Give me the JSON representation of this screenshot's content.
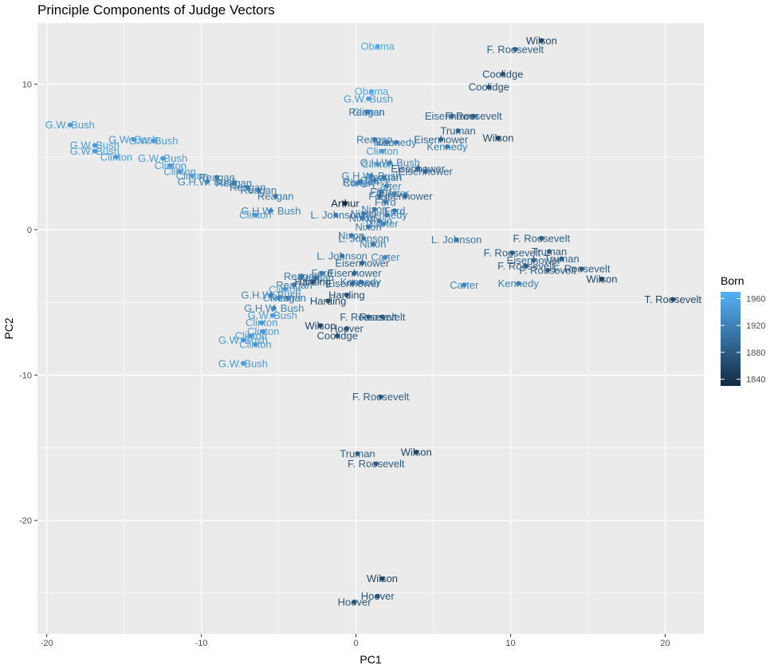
{
  "chart_data": {
    "type": "scatter",
    "title": "Principle Components of Judge Vectors",
    "xlabel": "PC1",
    "ylabel": "PC2",
    "xlim": [
      -20.6,
      22.5
    ],
    "ylim": [
      -27.8,
      14.2
    ],
    "x_ticks": [
      -20,
      -10,
      0,
      10,
      20
    ],
    "y_ticks": [
      10,
      0,
      -10,
      -20
    ],
    "grid": true,
    "background": "#ebebeb",
    "grid_color": "#ffffff",
    "legend": {
      "title": "Born",
      "placement": "right",
      "type": "colorbar",
      "range": [
        1830,
        1970
      ],
      "ticks": [
        1960,
        1920,
        1880,
        1840
      ],
      "color_low": "#132b43",
      "color_high": "#56b1f7"
    },
    "points": [
      {
        "x": 1.4,
        "y": 12.6,
        "label": "Obama",
        "born": 1961
      },
      {
        "x": 1.0,
        "y": 9.5,
        "label": "Obama",
        "born": 1961
      },
      {
        "x": 0.8,
        "y": 9.0,
        "label": "G.W. Bush",
        "born": 1946
      },
      {
        "x": 0.8,
        "y": 8.1,
        "label": "Clinton",
        "born": 1946
      },
      {
        "x": 0.7,
        "y": 8.1,
        "label": "Reagan",
        "born": 1911
      },
      {
        "x": 1.2,
        "y": 6.2,
        "label": "Reagan",
        "born": 1911
      },
      {
        "x": 2.0,
        "y": 6.0,
        "label": "Nixon",
        "born": 1913
      },
      {
        "x": 2.6,
        "y": 6.0,
        "label": "Kennedy",
        "born": 1917
      },
      {
        "x": 1.7,
        "y": 5.4,
        "label": "Clinton",
        "born": 1946
      },
      {
        "x": 1.4,
        "y": 4.5,
        "label": "Clinton",
        "born": 1946
      },
      {
        "x": 2.2,
        "y": 4.6,
        "label": "G.H.W. Bush",
        "born": 1924
      },
      {
        "x": 1.0,
        "y": 3.7,
        "label": "G.H.W. Bush",
        "born": 1924
      },
      {
        "x": 1.8,
        "y": 3.6,
        "label": "Reagan",
        "born": 1911
      },
      {
        "x": 1.2,
        "y": 3.4,
        "label": "Carter",
        "born": 1924
      },
      {
        "x": 0.3,
        "y": 3.3,
        "label": "Reagan",
        "born": 1911
      },
      {
        "x": 0.1,
        "y": 3.2,
        "label": "Carter",
        "born": 1924
      },
      {
        "x": 2.0,
        "y": 3.0,
        "label": "Carter",
        "born": 1924
      },
      {
        "x": 1.6,
        "y": 2.6,
        "label": "Ford",
        "born": 1913
      },
      {
        "x": 2.5,
        "y": 2.5,
        "label": "Carter",
        "born": 1924
      },
      {
        "x": 1.5,
        "y": 2.3,
        "label": "Ford",
        "born": 1913
      },
      {
        "x": 1.9,
        "y": 1.9,
        "label": "Ford",
        "born": 1913
      },
      {
        "x": 3.2,
        "y": 2.3,
        "label": "Eisenhower",
        "born": 1890
      },
      {
        "x": 4.0,
        "y": 4.2,
        "label": "Eisenhower",
        "born": 1890
      },
      {
        "x": 4.5,
        "y": 4.0,
        "label": "Eisenhower",
        "born": 1890
      },
      {
        "x": -0.7,
        "y": 1.8,
        "label": "Arthur",
        "born": 1829
      },
      {
        "x": 1.2,
        "y": 1.4,
        "label": "Nixon",
        "born": 1913
      },
      {
        "x": 2.5,
        "y": 1.3,
        "label": "Ford",
        "born": 1913
      },
      {
        "x": 0.5,
        "y": 1.1,
        "label": "Nixon",
        "born": 1913
      },
      {
        "x": 2.0,
        "y": 1.0,
        "label": "Kennedy",
        "born": 1917
      },
      {
        "x": -1.3,
        "y": 1.0,
        "label": "L. Johnson",
        "born": 1908
      },
      {
        "x": 0.4,
        "y": 0.8,
        "label": "Nixon",
        "born": 1913
      },
      {
        "x": 1.5,
        "y": 0.6,
        "label": "Nixon",
        "born": 1913
      },
      {
        "x": 1.8,
        "y": 0.4,
        "label": "Carter",
        "born": 1924
      },
      {
        "x": 0.8,
        "y": 0.2,
        "label": "Nixon",
        "born": 1913
      },
      {
        "x": -0.3,
        "y": -0.4,
        "label": "Nixon",
        "born": 1913
      },
      {
        "x": 0.5,
        "y": -0.6,
        "label": "L. Johnson",
        "born": 1908
      },
      {
        "x": 1.1,
        "y": -1.0,
        "label": "Nixon",
        "born": 1913
      },
      {
        "x": 6.5,
        "y": -0.7,
        "label": "L. Johnson",
        "born": 1908
      },
      {
        "x": 12.0,
        "y": -0.6,
        "label": "F. Roosevelt",
        "born": 1882
      },
      {
        "x": 10.1,
        "y": -1.6,
        "label": "F. Roosevelt",
        "born": 1882
      },
      {
        "x": 12.5,
        "y": -1.5,
        "label": "Truman",
        "born": 1884
      },
      {
        "x": 11.5,
        "y": -2.1,
        "label": "Eisenhower",
        "born": 1890
      },
      {
        "x": 13.3,
        "y": -2.0,
        "label": "Truman",
        "born": 1884
      },
      {
        "x": 11.0,
        "y": -2.5,
        "label": "F. Roosevelt",
        "born": 1882
      },
      {
        "x": 14.6,
        "y": -2.7,
        "label": "F. Roosevelt",
        "born": 1882
      },
      {
        "x": 12.4,
        "y": -2.8,
        "label": "F. Roosevelt",
        "born": 1882
      },
      {
        "x": 15.9,
        "y": -3.4,
        "label": "Wilson",
        "born": 1856
      },
      {
        "x": 10.5,
        "y": -3.7,
        "label": "Kennedy",
        "born": 1917
      },
      {
        "x": 7.0,
        "y": -3.8,
        "label": "Carter",
        "born": 1924
      },
      {
        "x": 20.5,
        "y": -4.8,
        "label": "T. Roosevelt",
        "born": 1858
      },
      {
        "x": -0.9,
        "y": -1.8,
        "label": "L. Johnson",
        "born": 1908
      },
      {
        "x": 1.9,
        "y": -1.9,
        "label": "Carter",
        "born": 1924
      },
      {
        "x": 0.4,
        "y": -2.3,
        "label": "Eisenhower",
        "born": 1890
      },
      {
        "x": -2.2,
        "y": -3.0,
        "label": "Ford",
        "born": 1913
      },
      {
        "x": -0.1,
        "y": -3.0,
        "label": "Eisenhower",
        "born": 1890
      },
      {
        "x": -3.5,
        "y": -3.2,
        "label": "Reagan",
        "born": 1911
      },
      {
        "x": -2.6,
        "y": -3.3,
        "label": "Reagan",
        "born": 1911
      },
      {
        "x": 0.3,
        "y": -3.6,
        "label": "Kennedy",
        "born": 1917
      },
      {
        "x": -2.8,
        "y": -3.6,
        "label": "Harding",
        "born": 1865
      },
      {
        "x": -0.2,
        "y": -3.7,
        "label": "Eisenhower",
        "born": 1890
      },
      {
        "x": -4.0,
        "y": -3.8,
        "label": "Reagan",
        "born": 1911
      },
      {
        "x": -4.6,
        "y": -4.1,
        "label": "Clinton",
        "born": 1946
      },
      {
        "x": -0.6,
        "y": -4.5,
        "label": "Harding",
        "born": 1865
      },
      {
        "x": -5.5,
        "y": -4.5,
        "label": "G.H.W. Bush",
        "born": 1924
      },
      {
        "x": -5.0,
        "y": -4.7,
        "label": "Clinton",
        "born": 1946
      },
      {
        "x": -1.8,
        "y": -4.9,
        "label": "Harding",
        "born": 1865
      },
      {
        "x": -4.4,
        "y": -4.7,
        "label": "Reagan",
        "born": 1911
      },
      {
        "x": -5.3,
        "y": -5.4,
        "label": "G.H.W. Bush",
        "born": 1924
      },
      {
        "x": -5.4,
        "y": -5.9,
        "label": "G.W. Bush",
        "born": 1946
      },
      {
        "x": 0.8,
        "y": -6.0,
        "label": "F. Roosevelt",
        "born": 1882
      },
      {
        "x": 1.7,
        "y": -6.0,
        "label": "Roosevelt",
        "born": 1882
      },
      {
        "x": -6.1,
        "y": -6.4,
        "label": "Clinton",
        "born": 1946
      },
      {
        "x": -2.3,
        "y": -6.6,
        "label": "Wilson",
        "born": 1856
      },
      {
        "x": -6.0,
        "y": -7.0,
        "label": "Clinton",
        "born": 1946
      },
      {
        "x": -0.6,
        "y": -6.8,
        "label": "Hoover",
        "born": 1874
      },
      {
        "x": -6.8,
        "y": -7.3,
        "label": "Clinton",
        "born": 1946
      },
      {
        "x": -1.2,
        "y": -7.3,
        "label": "Coolidge",
        "born": 1872
      },
      {
        "x": -7.3,
        "y": -7.6,
        "label": "G.W. Bush",
        "born": 1946
      },
      {
        "x": -6.5,
        "y": -7.9,
        "label": "Clinton",
        "born": 1946
      },
      {
        "x": -7.3,
        "y": -9.2,
        "label": "G.W. Bush",
        "born": 1946
      },
      {
        "x": 1.6,
        "y": -11.5,
        "label": "F. Roosevelt",
        "born": 1882
      },
      {
        "x": 0.1,
        "y": -15.4,
        "label": "Truman",
        "born": 1884
      },
      {
        "x": 3.9,
        "y": -15.3,
        "label": "Wilson",
        "born": 1856
      },
      {
        "x": 1.3,
        "y": -16.1,
        "label": "F. Roosevelt",
        "born": 1882
      },
      {
        "x": 1.7,
        "y": -24.0,
        "label": "Wilson",
        "born": 1856
      },
      {
        "x": 1.4,
        "y": -25.2,
        "label": "Hoover",
        "born": 1874
      },
      {
        "x": -0.1,
        "y": -25.6,
        "label": "Hoover",
        "born": 1874
      },
      {
        "x": -18.5,
        "y": 7.2,
        "label": "G.W. Bush",
        "born": 1946
      },
      {
        "x": -14.4,
        "y": 6.2,
        "label": "G.W. Bush",
        "born": 1946
      },
      {
        "x": -13.1,
        "y": 6.1,
        "label": "G.W. Bush",
        "born": 1946
      },
      {
        "x": -16.9,
        "y": 5.8,
        "label": "G.W. Bush",
        "born": 1946
      },
      {
        "x": -16.9,
        "y": 5.4,
        "label": "G.W. Bush",
        "born": 1946
      },
      {
        "x": -15.5,
        "y": 5.0,
        "label": "Clinton",
        "born": 1946
      },
      {
        "x": -12.5,
        "y": 4.9,
        "label": "G.W. Bush",
        "born": 1946
      },
      {
        "x": -12.0,
        "y": 4.4,
        "label": "Clinton",
        "born": 1946
      },
      {
        "x": -11.4,
        "y": 4.0,
        "label": "Clinton",
        "born": 1946
      },
      {
        "x": -10.6,
        "y": 3.7,
        "label": "Clinton",
        "born": 1946
      },
      {
        "x": -9.0,
        "y": 3.6,
        "label": "Reagan",
        "born": 1911
      },
      {
        "x": -9.6,
        "y": 3.3,
        "label": "G.H.W. Bush",
        "born": 1924
      },
      {
        "x": -7.9,
        "y": 3.2,
        "label": "Reagan",
        "born": 1911
      },
      {
        "x": -7.0,
        "y": 2.9,
        "label": "Reagan",
        "born": 1911
      },
      {
        "x": -6.3,
        "y": 2.7,
        "label": "Reagan",
        "born": 1911
      },
      {
        "x": -5.2,
        "y": 2.3,
        "label": "Reagan",
        "born": 1911
      },
      {
        "x": -5.5,
        "y": 1.3,
        "label": "G.H.W. Bush",
        "born": 1924
      },
      {
        "x": -6.5,
        "y": 1.0,
        "label": "Clinton",
        "born": 1946
      },
      {
        "x": 12.0,
        "y": 13.0,
        "label": "Wilson",
        "born": 1856
      },
      {
        "x": 10.3,
        "y": 12.4,
        "label": "F. Roosevelt",
        "born": 1882
      },
      {
        "x": 9.5,
        "y": 10.7,
        "label": "Coolidge",
        "born": 1872
      },
      {
        "x": 8.6,
        "y": 9.8,
        "label": "Coolidge",
        "born": 1872
      },
      {
        "x": 6.2,
        "y": 7.8,
        "label": "Eisenhower",
        "born": 1890
      },
      {
        "x": 7.6,
        "y": 7.8,
        "label": "F. Roosevelt",
        "born": 1882
      },
      {
        "x": 6.6,
        "y": 6.8,
        "label": "Truman",
        "born": 1884
      },
      {
        "x": 5.5,
        "y": 6.2,
        "label": "Eisenhower",
        "born": 1890
      },
      {
        "x": 9.2,
        "y": 6.3,
        "label": "Wilson",
        "born": 1856
      },
      {
        "x": 5.9,
        "y": 5.7,
        "label": "Kennedy",
        "born": 1917
      }
    ]
  }
}
